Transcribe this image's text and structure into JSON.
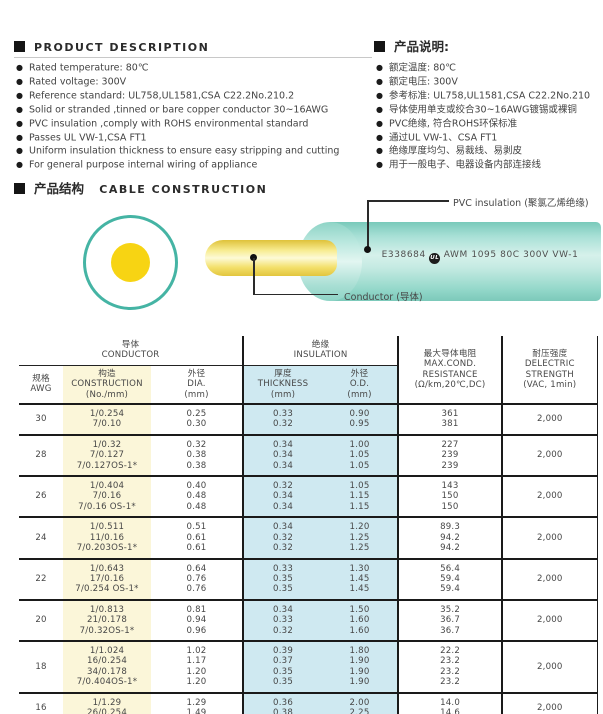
{
  "description": {
    "en": {
      "title": "PRODUCT  DESCRIPTION",
      "bullets": [
        "Rated temperature: 80℃",
        "Rated voltage: 300V",
        "Reference standard: UL758,UL1581,CSA C22.2No.210.2",
        "Solid or stranded ,tinned or bare copper conductor 30~16AWG",
        "PVC insulation ,comply with ROHS environmental standard",
        "Passes UL VW-1,CSA FT1",
        "Uniform insulation thickness to ensure easy stripping and cutting",
        "For general purpose internal wiring of appliance"
      ]
    },
    "cn": {
      "title": "产品说明:",
      "bullets": [
        "额定温度: 80℃",
        "额定电压: 300V",
        "参考标准: UL758,UL1581,CSA C22.2No.210",
        "导体使用单支或绞合30~16AWG镀锡或裸铜",
        "PVC绝缘, 符合ROHS环保标准",
        "通过UL VW-1、CSA FT1",
        "绝缘厚度均匀、易裁线、易剥皮",
        "用于一般电子、电器设备内部连接线"
      ]
    }
  },
  "construction": {
    "title_cn": "产品结构",
    "title_en": "CABLE  CONSTRUCTION",
    "insulation_label": "PVC insulation (聚氯乙烯绝缘)",
    "conductor_label": "Conductor (导体)",
    "print_code": "E338684",
    "ul_mark": "UL",
    "print_text": "AWM 1095 80C 300V VW-1"
  },
  "colors": {
    "teal_ring": "#45b4a4",
    "conductor_yellow": "#f7d413",
    "table_yellow": "#fbf6d9",
    "table_blue": "#cfe9f1"
  },
  "table": {
    "groups": {
      "conductor": "导体\nCONDUCTOR",
      "insulation": "绝缘\nINSULATION"
    },
    "headers": {
      "awg": "规格\nAWG",
      "construction": "构造\nCONSTRUCTION\n(No./mm)",
      "dia": "外径\nDIA.\n(mm)",
      "thickness": "厚度\nTHICKNESS\n(mm)",
      "od": "外径\nO.D.\n(mm)",
      "resistance": "最大导体电阻\nMAX.COND.\nRESISTANCE\n(Ω/km,20℃,DC)",
      "dielectric": "耐压强度\nDELECTRIC\nSTRENGTH\n(VAC, 1min)"
    },
    "rows": [
      {
        "awg": "30",
        "construction": [
          "1/0.254",
          "7/0.10"
        ],
        "dia": [
          "0.25",
          "0.30"
        ],
        "thickness": [
          "0.33",
          "0.32"
        ],
        "od": [
          "0.90",
          "0.95"
        ],
        "resistance": [
          "361",
          "381"
        ],
        "dielectric": "2,000"
      },
      {
        "awg": "28",
        "construction": [
          "1/0.32",
          "7/0.127",
          "7/0.127OS-1*"
        ],
        "dia": [
          "0.32",
          "0.38",
          "0.38"
        ],
        "thickness": [
          "0.34",
          "0.34",
          "0.34"
        ],
        "od": [
          "1.00",
          "1.05",
          "1.05"
        ],
        "resistance": [
          "227",
          "239",
          "239"
        ],
        "dielectric": "2,000"
      },
      {
        "awg": "26",
        "construction": [
          "1/0.404",
          "7/0.16",
          "7/0.16 OS-1*"
        ],
        "dia": [
          "0.40",
          "0.48",
          "0.48"
        ],
        "thickness": [
          "0.32",
          "0.34",
          "0.34"
        ],
        "od": [
          "1.05",
          "1.15",
          "1.15"
        ],
        "resistance": [
          "143",
          "150",
          "150"
        ],
        "dielectric": "2,000"
      },
      {
        "awg": "24",
        "construction": [
          "1/0.511",
          "11/0.16",
          "7/0.203OS-1*"
        ],
        "dia": [
          "0.51",
          "0.61",
          "0.61"
        ],
        "thickness": [
          "0.34",
          "0.32",
          "0.32"
        ],
        "od": [
          "1.20",
          "1.25",
          "1.25"
        ],
        "resistance": [
          "89.3",
          "94.2",
          "94.2"
        ],
        "dielectric": "2,000"
      },
      {
        "awg": "22",
        "construction": [
          "1/0.643",
          "17/0.16",
          "7/0.254 OS-1*"
        ],
        "dia": [
          "0.64",
          "0.76",
          "0.76"
        ],
        "thickness": [
          "0.33",
          "0.35",
          "0.35"
        ],
        "od": [
          "1.30",
          "1.45",
          "1.45"
        ],
        "resistance": [
          "56.4",
          "59.4",
          "59.4"
        ],
        "dielectric": "2,000"
      },
      {
        "awg": "20",
        "construction": [
          "1/0.813",
          "21/0.178",
          "7/0.32OS-1*"
        ],
        "dia": [
          "0.81",
          "0.94",
          "0.96"
        ],
        "thickness": [
          "0.34",
          "0.33",
          "0.32"
        ],
        "od": [
          "1.50",
          "1.60",
          "1.60"
        ],
        "resistance": [
          "35.2",
          "36.7",
          "36.7"
        ],
        "dielectric": "2,000"
      },
      {
        "awg": "18",
        "construction": [
          "1/1.024",
          "16/0.254",
          "34/0.178",
          "7/0.404OS-1*"
        ],
        "dia": [
          "1.02",
          "1.17",
          "1.20",
          "1.20"
        ],
        "thickness": [
          "0.39",
          "0.37",
          "0.35",
          "0.35"
        ],
        "od": [
          "1.80",
          "1.90",
          "1.90",
          "1.90"
        ],
        "resistance": [
          "22.2",
          "23.2",
          "23.2",
          "23.2"
        ],
        "dielectric": "2,000"
      },
      {
        "awg": "16",
        "construction": [
          "1/1.29",
          "26/0.254"
        ],
        "dia": [
          "1.29",
          "1.49"
        ],
        "thickness": [
          "0.36",
          "0.38"
        ],
        "od": [
          "2.00",
          "2.25"
        ],
        "resistance": [
          "14.0",
          "14.6"
        ],
        "dielectric": "2,000"
      }
    ]
  }
}
